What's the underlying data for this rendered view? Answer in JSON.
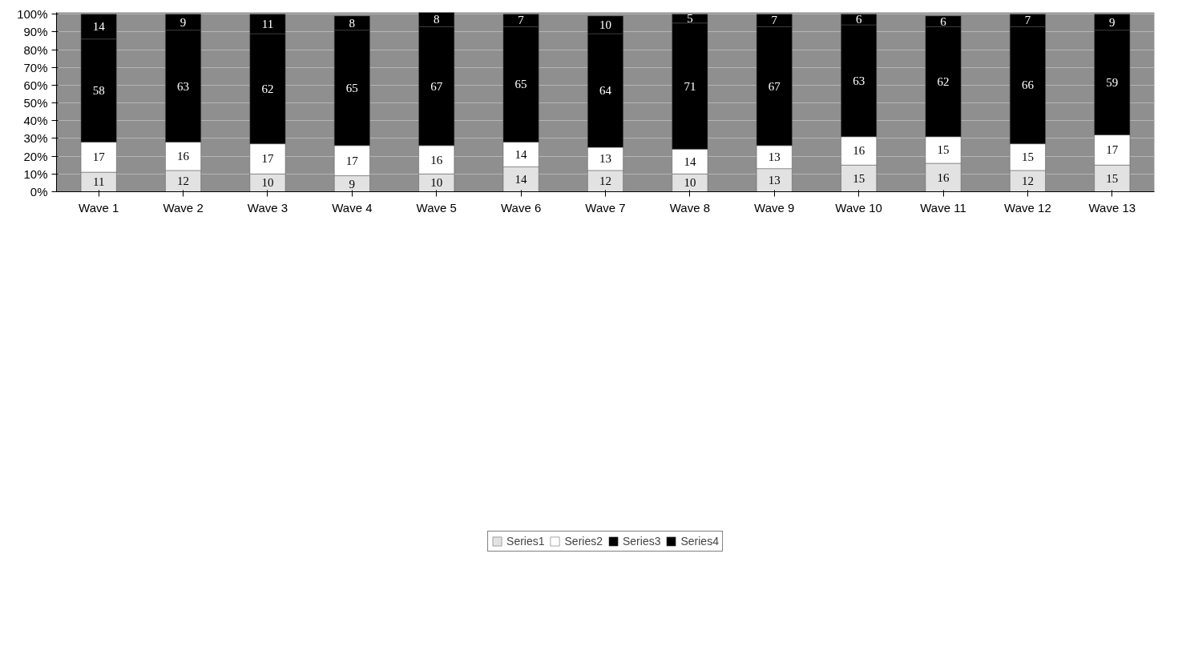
{
  "chart_data": {
    "type": "bar",
    "stacked": true,
    "categories": [
      "Wave 1",
      "Wave 2",
      "Wave 3",
      "Wave 4",
      "Wave 5",
      "Wave 6",
      "Wave 7",
      "Wave 8",
      "Wave 9",
      "Wave 10",
      "Wave 11",
      "Wave 12",
      "Wave 13"
    ],
    "series": [
      {
        "name": "Series1",
        "color": "#e2e2e2",
        "values": [
          11,
          12,
          10,
          9,
          10,
          14,
          12,
          10,
          13,
          15,
          16,
          12,
          15
        ]
      },
      {
        "name": "Series2",
        "color": "#ffffff",
        "values": [
          17,
          16,
          17,
          17,
          16,
          14,
          13,
          14,
          13,
          16,
          15,
          15,
          17
        ]
      },
      {
        "name": "Series3",
        "color": "#000000",
        "values": [
          58,
          63,
          62,
          65,
          67,
          65,
          64,
          71,
          67,
          63,
          62,
          66,
          59
        ]
      },
      {
        "name": "Series4",
        "color": "#000000",
        "values": [
          14,
          9,
          11,
          8,
          8,
          7,
          10,
          5,
          7,
          6,
          6,
          7,
          9
        ]
      }
    ],
    "ylim": [
      0,
      101
    ],
    "yticks": [
      {
        "value": 0,
        "label": "0%"
      },
      {
        "value": 10,
        "label": "10%"
      },
      {
        "value": 20,
        "label": "20%"
      },
      {
        "value": 30,
        "label": "30%"
      },
      {
        "value": 40,
        "label": "40%"
      },
      {
        "value": 50,
        "label": "50%"
      },
      {
        "value": 60,
        "label": "60%"
      },
      {
        "value": 70,
        "label": "70%"
      },
      {
        "value": 80,
        "label": "80%"
      },
      {
        "value": 90,
        "label": "90%"
      },
      {
        "value": 100,
        "label": "100%"
      }
    ],
    "grid": "y",
    "legend": "bottom",
    "data_labels": true
  }
}
